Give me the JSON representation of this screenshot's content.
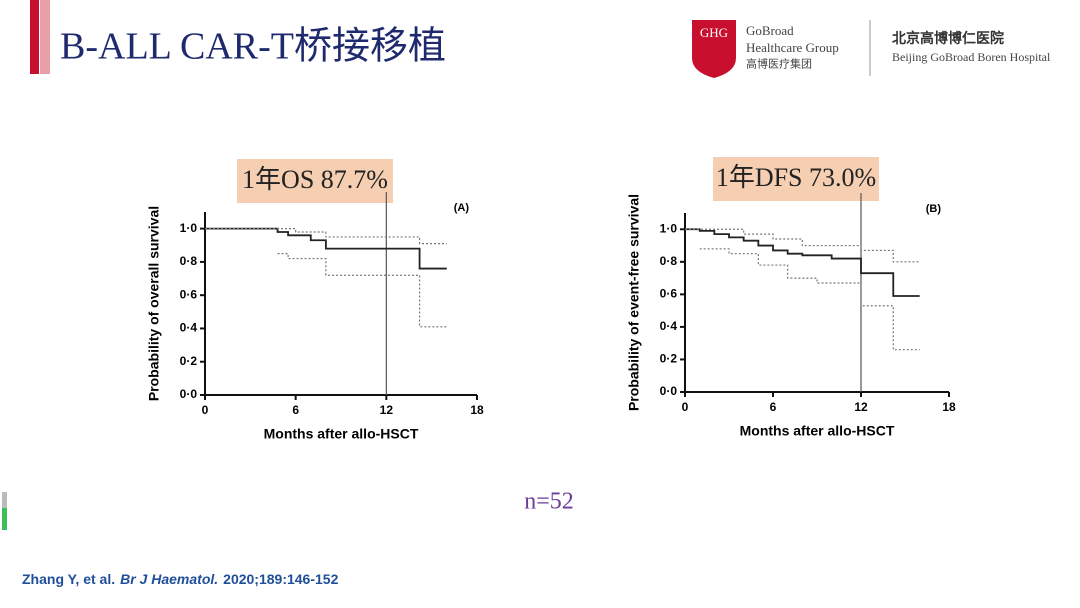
{
  "header": {
    "title": "B-ALL CAR-T桥接移植",
    "logo_mark": "GHG",
    "logo_name": "GoBroad",
    "logo_sub": "Healthcare Group",
    "logo_cn": "高博医疗集团",
    "hospital_cn": "北京高博博仁医院",
    "hospital_en": "Beijing GoBroad Boren Hospital"
  },
  "sample_size": "n=52",
  "citation": {
    "authors": "Zhang Y, et al.",
    "journal": "Br J Haematol.",
    "details": "2020;189:146-152"
  },
  "chart_data": [
    {
      "type": "line",
      "step": true,
      "headline": "1年OS 87.7%",
      "panel": "(A)",
      "xlabel": "Months after allo-HSCT",
      "ylabel": "Probability of overall survival",
      "xlim": [
        0,
        18
      ],
      "xticks": [
        0,
        6,
        12,
        18
      ],
      "ylim": [
        0,
        1.1
      ],
      "yticks": [
        {
          "value": 0,
          "label": "0·0"
        },
        {
          "value": 0.2,
          "label": "0·2"
        },
        {
          "value": 0.4,
          "label": "0·4"
        },
        {
          "value": 0.6,
          "label": "0·6"
        },
        {
          "value": 0.8,
          "label": "0·8"
        },
        {
          "value": 1,
          "label": "1·0"
        }
      ],
      "vline": 12,
      "series": [
        {
          "style": "solid",
          "color": "#222222",
          "x": [
            0,
            4.8,
            5.5,
            7,
            8,
            14.2,
            16
          ],
          "values": [
            1,
            0.98,
            0.96,
            0.93,
            0.88,
            0.76,
            0.76
          ]
        },
        {
          "style": "dotted",
          "color": "#777777",
          "x": [
            0,
            4.8,
            6,
            8,
            14.2,
            16
          ],
          "values": [
            1,
            1,
            0.98,
            0.95,
            0.91,
            0.91
          ]
        },
        {
          "style": "dotted",
          "color": "#777777",
          "x": [
            4.8,
            5.5,
            8,
            14.2,
            16
          ],
          "values": [
            0.85,
            0.82,
            0.72,
            0.41,
            0.41
          ]
        }
      ]
    },
    {
      "type": "line",
      "step": true,
      "headline": "1年DFS 73.0%",
      "panel": "(B)",
      "xlabel": "Months after allo-HSCT",
      "ylabel": "Probability of event-free survival",
      "xlim": [
        0,
        18
      ],
      "xticks": [
        0,
        6,
        12,
        18
      ],
      "ylim": [
        0,
        1.1
      ],
      "yticks": [
        {
          "value": 0,
          "label": "0·0"
        },
        {
          "value": 0.2,
          "label": "0·2"
        },
        {
          "value": 0.4,
          "label": "0·4"
        },
        {
          "value": 0.6,
          "label": "0·6"
        },
        {
          "value": 0.8,
          "label": "0·8"
        },
        {
          "value": 1,
          "label": "1·0"
        }
      ],
      "vline": 12,
      "series": [
        {
          "style": "solid",
          "color": "#222222",
          "x": [
            0,
            1,
            2,
            3,
            4,
            5,
            6,
            7,
            8,
            10,
            12,
            14.2,
            16
          ],
          "values": [
            1,
            0.99,
            0.97,
            0.95,
            0.93,
            0.9,
            0.87,
            0.85,
            0.84,
            0.82,
            0.73,
            0.59,
            0.59
          ]
        },
        {
          "style": "dotted",
          "color": "#777777",
          "x": [
            0,
            2,
            4,
            6,
            8,
            12,
            14.2,
            16
          ],
          "values": [
            1,
            1,
            0.97,
            0.94,
            0.9,
            0.87,
            0.8,
            0.8
          ]
        },
        {
          "style": "dotted",
          "color": "#777777",
          "x": [
            1,
            3,
            5,
            7,
            9,
            12,
            14.2,
            16
          ],
          "values": [
            0.88,
            0.85,
            0.78,
            0.7,
            0.67,
            0.53,
            0.26,
            0.26
          ]
        }
      ]
    }
  ]
}
